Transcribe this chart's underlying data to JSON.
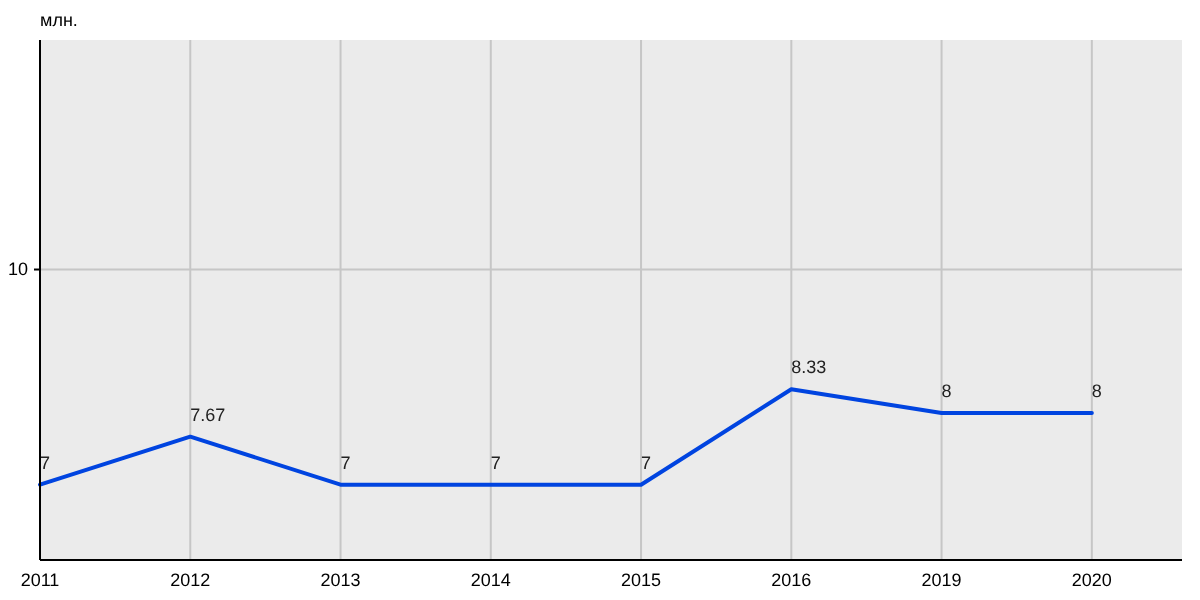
{
  "chart_data": {
    "type": "line",
    "ylabel": "млн.",
    "categories": [
      "2011",
      "2012",
      "2013",
      "2014",
      "2015",
      "2016",
      "2019",
      "2020"
    ],
    "series": [
      {
        "color": "#0044e0",
        "values": [
          7,
          7.67,
          7,
          7,
          7,
          8.33,
          8,
          8
        ]
      }
    ],
    "ylim": [
      5.95,
      13.2
    ],
    "ref_lines": [
      {
        "axis": "y",
        "value": 10,
        "label": "10",
        "color": "#c6c6c6"
      }
    ],
    "grid": "x",
    "data_labels": true,
    "marker": "none",
    "line_style": "solid"
  }
}
